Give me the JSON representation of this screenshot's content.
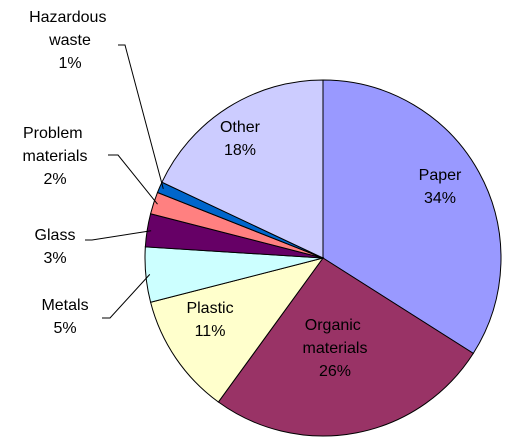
{
  "chart_data": {
    "type": "pie",
    "categories": [
      "Paper",
      "Organic materials",
      "Plastic",
      "Metals",
      "Glass",
      "Problem materials",
      "Hazardous waste",
      "Other"
    ],
    "values": [
      34,
      26,
      11,
      5,
      3,
      2,
      1,
      18
    ],
    "value_labels": [
      "34%",
      "26%",
      "11%",
      "5%",
      "3%",
      "2%",
      "1%",
      "18%"
    ],
    "colors": [
      "#9999ff",
      "#993366",
      "#ffffcc",
      "#ccffff",
      "#660066",
      "#ff8080",
      "#0066cc",
      "#ccccff"
    ]
  }
}
